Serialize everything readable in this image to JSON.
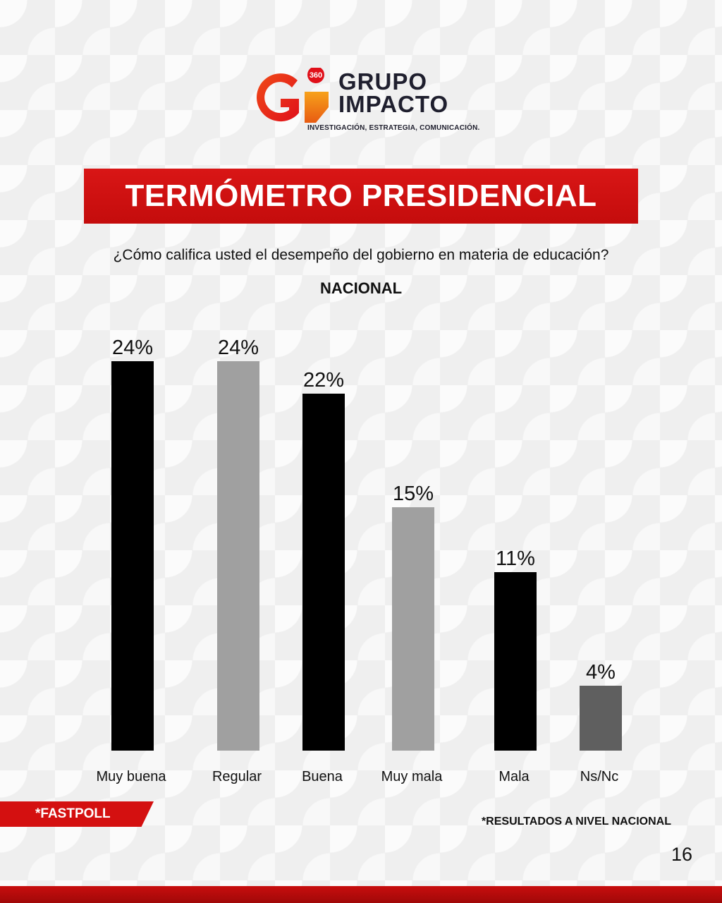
{
  "logo": {
    "brand_line1": "GRUPO",
    "brand_line2": "IMPACTO",
    "tagline": "INVESTIGACIÓN, ESTRATEGIA, COMUNICACIÓN.",
    "badge": "360",
    "monogram": "Gi"
  },
  "banner": {
    "title": "TERMÓMETRO PRESIDENCIAL"
  },
  "question": "¿Cómo califica usted el desempeño del gobierno en materia de educación?",
  "region": "NACIONAL",
  "chart_data": {
    "type": "bar",
    "categories": [
      "Muy buena",
      "Regular",
      "Buena",
      "Muy mala",
      "Mala",
      "Ns/Nc"
    ],
    "values": [
      24,
      24,
      22,
      15,
      11,
      4
    ],
    "value_labels": [
      "24%",
      "24%",
      "22%",
      "15%",
      "11%",
      "4%"
    ],
    "colors": [
      "#000000",
      "#a0a0a0",
      "#000000",
      "#a0a0a0",
      "#000000",
      "#5f5f5f"
    ],
    "ylim": [
      0,
      24
    ],
    "grid": false,
    "title": "",
    "xlabel": "",
    "ylabel": ""
  },
  "footer": {
    "source_tag": "*FASTPOLL",
    "note": "*RESULTADOS A NIVEL NACIONAL",
    "page_number": "16"
  },
  "colors": {
    "accent": "#d41010",
    "dark": "#1f1f2e"
  }
}
